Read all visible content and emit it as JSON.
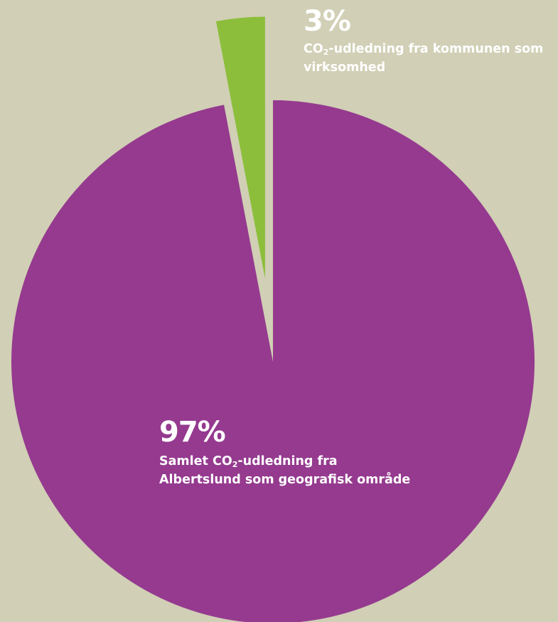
{
  "colors": {
    "background": "#D1CFB5",
    "large_slice": "#953A8F",
    "small_slice": "#8CBE3C",
    "label_text": "#FFFFFF"
  },
  "chart_data": {
    "type": "pie",
    "slices": [
      {
        "value": 97,
        "percent_label": "97%",
        "label_part1": "Samlet CO",
        "label_sub": "2",
        "label_part2": "-udledning fra Albertslund som geografisk område",
        "color": "#953A8F"
      },
      {
        "value": 3,
        "percent_label": "3%",
        "label_part1": "CO",
        "label_sub": "2",
        "label_part2": "-udledning fra kommunen som virksomhed",
        "color": "#8CBE3C",
        "exploded": true
      }
    ]
  }
}
